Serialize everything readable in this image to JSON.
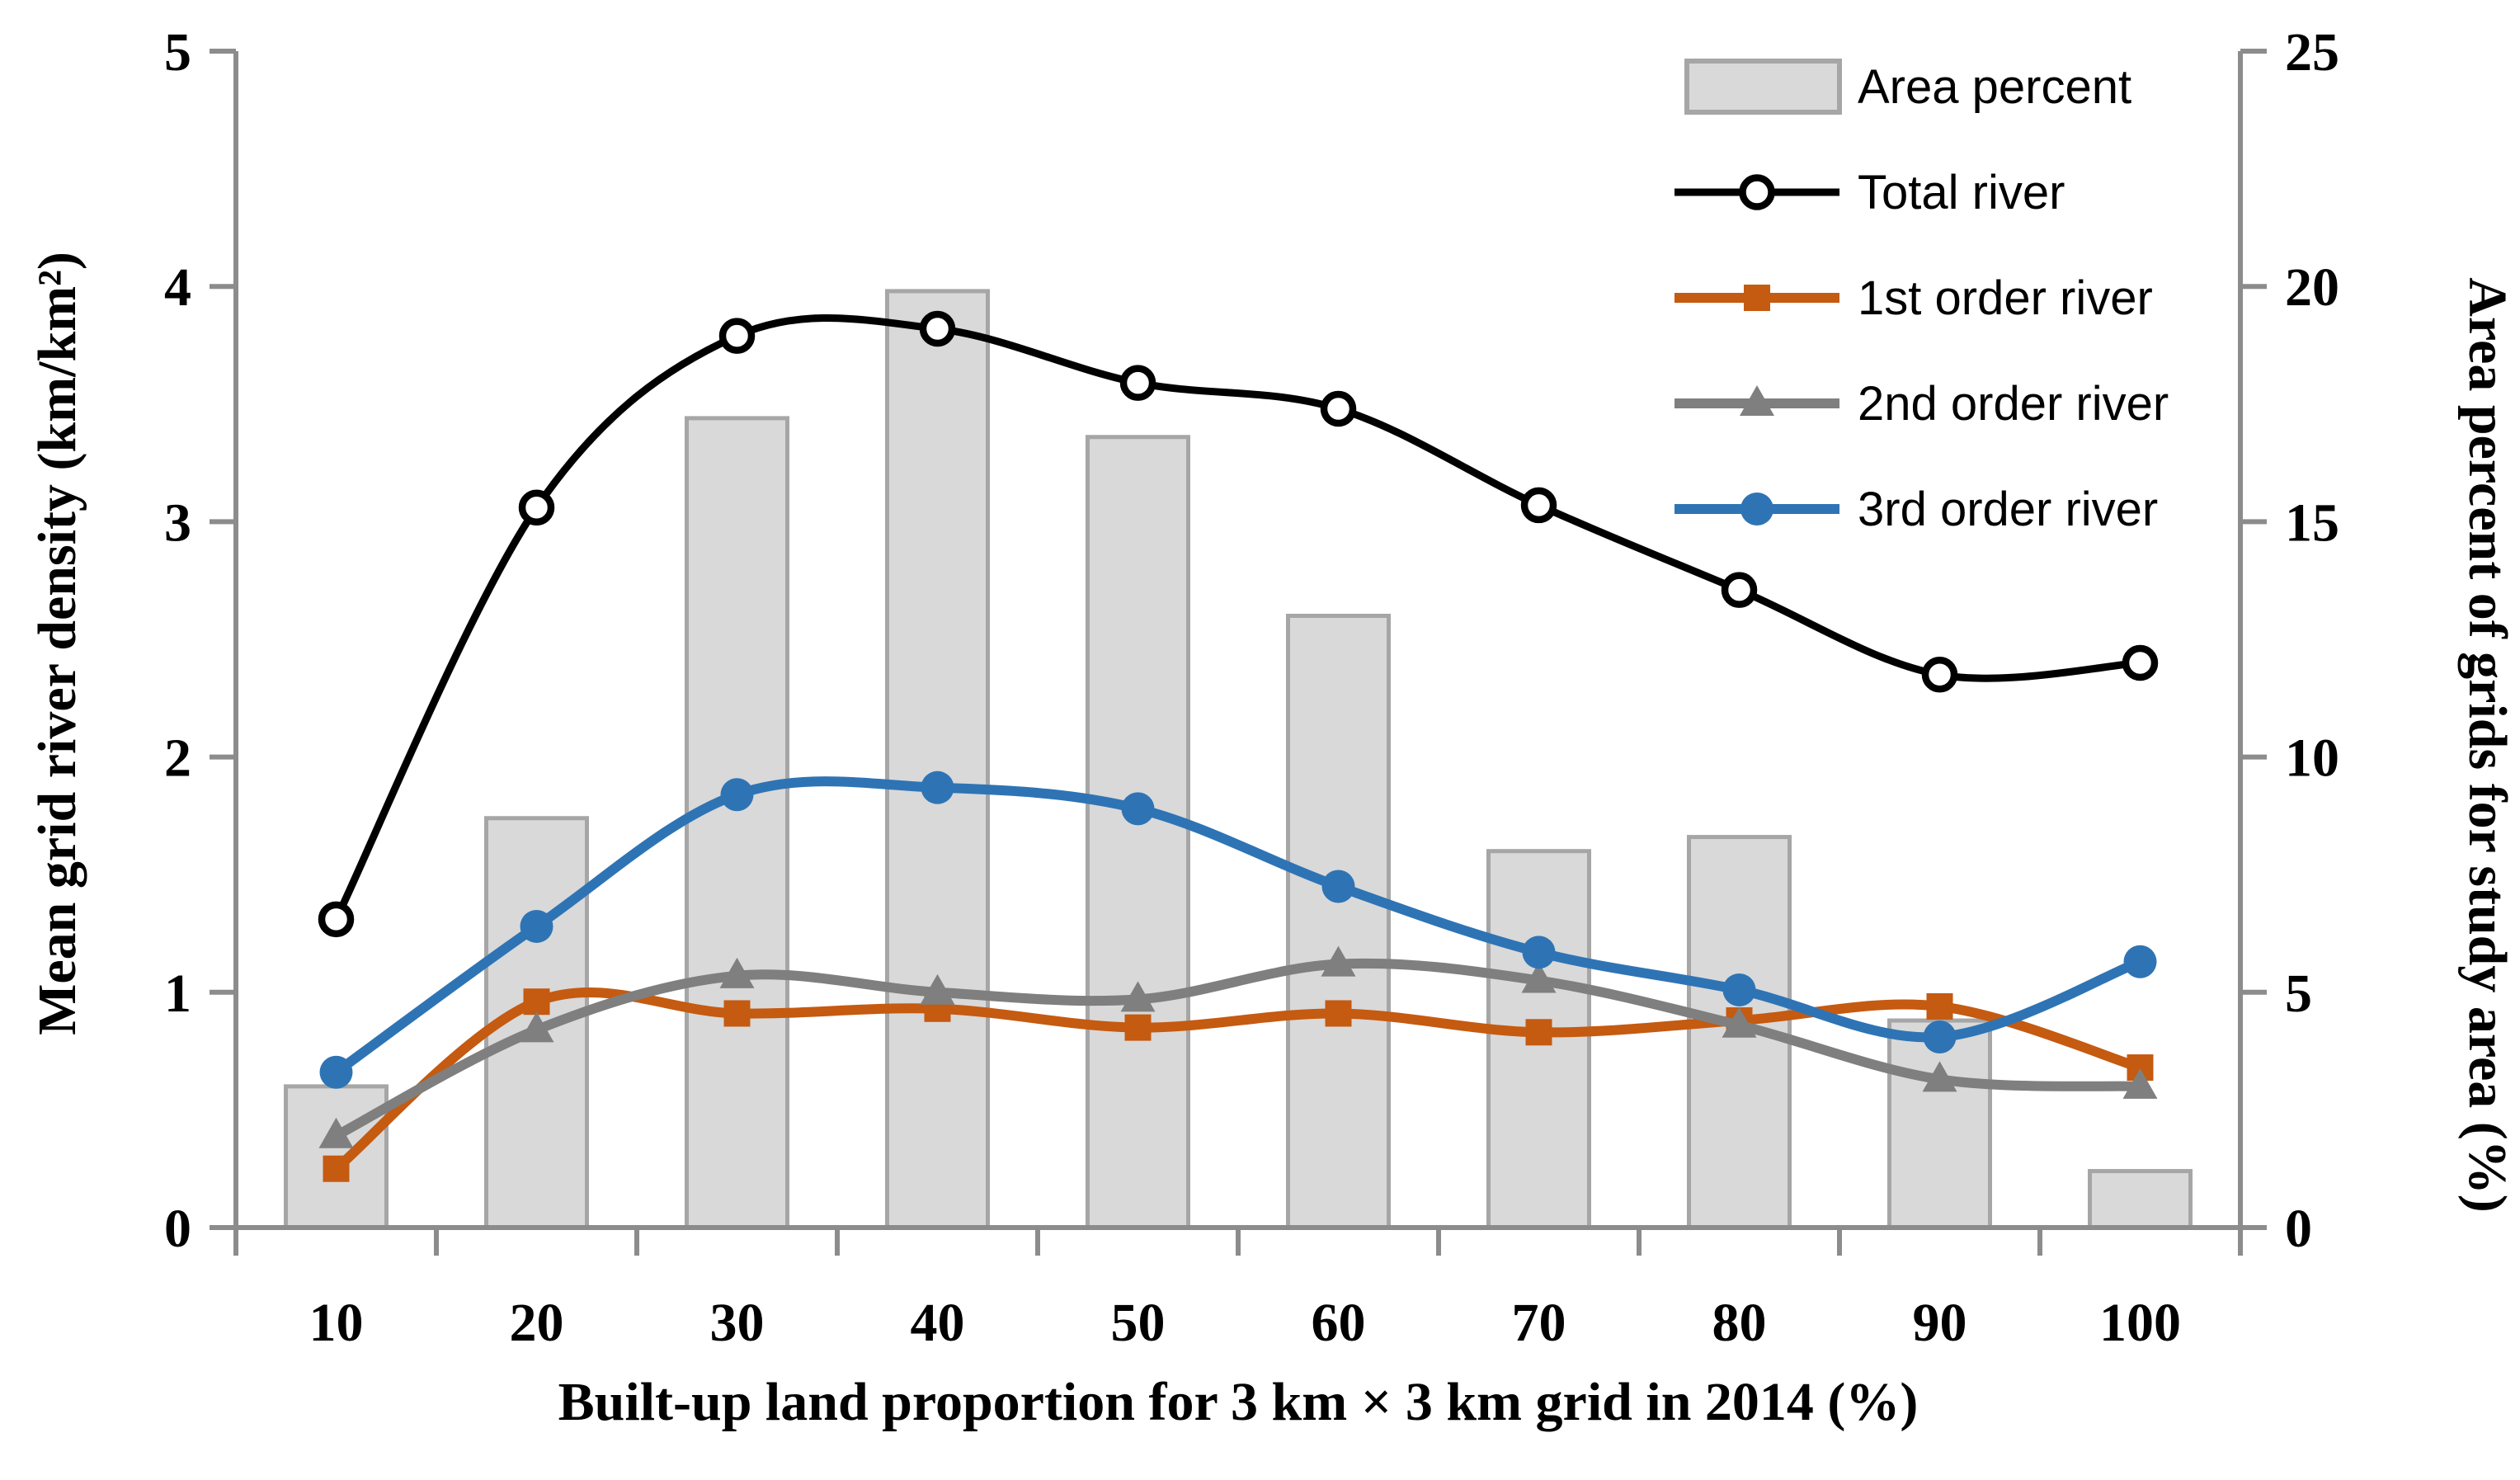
{
  "chart_data": {
    "type": "bar",
    "subtype": "combo-bar-line",
    "categories": [
      10,
      20,
      30,
      40,
      50,
      60,
      70,
      80,
      90,
      100
    ],
    "x_axis": {
      "title": "Built-up land proportion for 3 km × 3 km grid in 2014 (%)",
      "tick_labels": [
        "10",
        "20",
        "30",
        "40",
        "50",
        "60",
        "70",
        "80",
        "90",
        "100"
      ]
    },
    "y_left": {
      "title": "Mean grid river density (km/km²)",
      "ticks": [
        0,
        1,
        2,
        3,
        4,
        5
      ],
      "range": [
        0,
        5
      ]
    },
    "y_right": {
      "title": "Area percent of grids for study area  (%)",
      "ticks": [
        0,
        5,
        10,
        15,
        20,
        25
      ],
      "range": [
        0,
        25
      ]
    },
    "grid": "off",
    "legend_position": "top-right-inside",
    "series": [
      {
        "name": "Area percent",
        "type": "bar",
        "axis": "right",
        "marker": "bar-swatch",
        "color": "#D9D9D9",
        "border": "#A6A6A6",
        "values": [
          3.0,
          8.7,
          17.2,
          19.9,
          16.8,
          13.0,
          8.0,
          8.3,
          4.4,
          1.2
        ]
      },
      {
        "name": "Total river",
        "type": "line",
        "axis": "left",
        "marker": "open-circle",
        "color": "#000000",
        "values": [
          1.31,
          3.06,
          3.79,
          3.82,
          3.59,
          3.48,
          3.07,
          2.71,
          2.35,
          2.4
        ]
      },
      {
        "name": "1st order river",
        "type": "line",
        "axis": "left",
        "marker": "square",
        "color": "#C55A11",
        "values": [
          0.25,
          0.96,
          0.91,
          0.93,
          0.85,
          0.91,
          0.83,
          0.88,
          0.94,
          0.68
        ]
      },
      {
        "name": "2nd order river",
        "type": "line",
        "axis": "left",
        "marker": "triangle",
        "color": "#7F7F7F",
        "values": [
          0.39,
          0.84,
          1.07,
          1.0,
          0.97,
          1.12,
          1.05,
          0.86,
          0.63,
          0.6
        ]
      },
      {
        "name": "3rd order river",
        "type": "line",
        "axis": "left",
        "marker": "circle",
        "color": "#2E74B5",
        "values": [
          0.66,
          1.28,
          1.84,
          1.87,
          1.78,
          1.45,
          1.17,
          1.01,
          0.81,
          1.13
        ]
      }
    ],
    "axis_color": "#8C8C8C",
    "text_color": "#000000"
  }
}
